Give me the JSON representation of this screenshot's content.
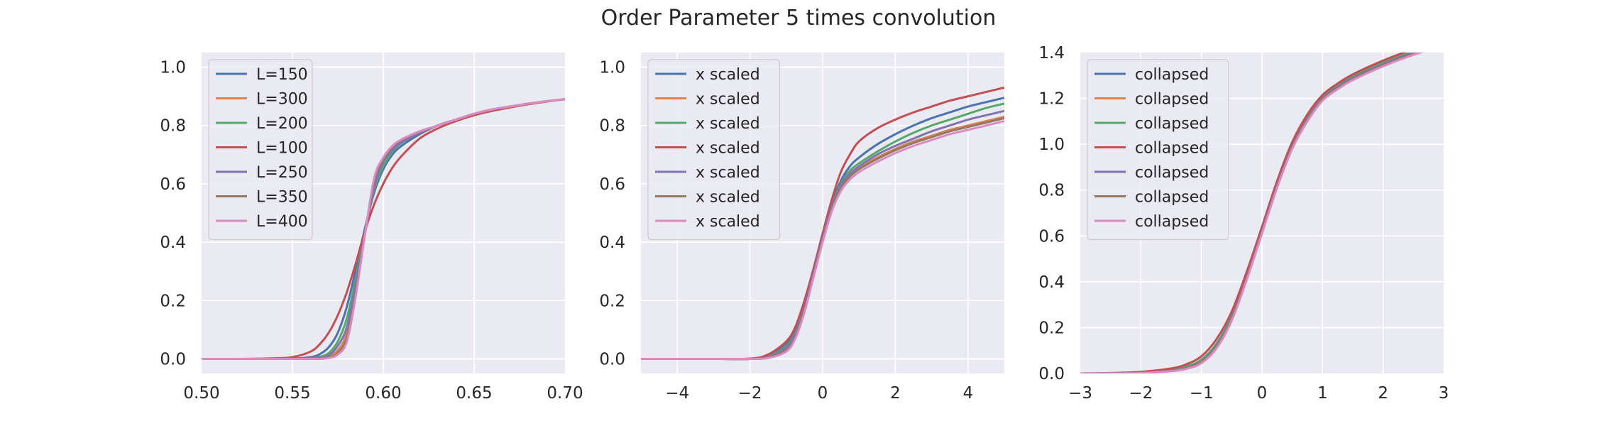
{
  "figure": {
    "title": "Order Parameter 5 times convolution"
  },
  "palette": [
    "#4c72b0",
    "#dd8452",
    "#55a868",
    "#c44e52",
    "#8172b3",
    "#937860",
    "#da8bc3"
  ],
  "chart_data": [
    {
      "type": "line",
      "xlim": [
        0.5,
        0.7
      ],
      "ylim": [
        -0.05,
        1.05
      ],
      "xticks": [
        0.5,
        0.55,
        0.6,
        0.65,
        0.7
      ],
      "xtick_labels": [
        "0.50",
        "0.55",
        "0.60",
        "0.65",
        "0.70"
      ],
      "yticks": [
        0.0,
        0.2,
        0.4,
        0.6,
        0.8,
        1.0
      ],
      "ytick_labels": [
        "0.0",
        "0.2",
        "0.4",
        "0.6",
        "0.8",
        "1.0"
      ],
      "grid": true,
      "legend": "top-left",
      "title": "",
      "xlabel": "",
      "ylabel": "",
      "x": [
        0.5,
        0.52,
        0.54,
        0.55,
        0.56,
        0.565,
        0.57,
        0.575,
        0.58,
        0.585,
        0.59,
        0.595,
        0.6,
        0.605,
        0.61,
        0.62,
        0.63,
        0.64,
        0.65,
        0.66,
        0.67,
        0.68,
        0.69,
        0.7
      ],
      "series": [
        {
          "name": "L=150",
          "values": [
            0.0,
            0.0,
            0.0,
            0.001,
            0.006,
            0.016,
            0.04,
            0.09,
            0.18,
            0.31,
            0.45,
            0.57,
            0.65,
            0.7,
            0.73,
            0.77,
            0.8,
            0.82,
            0.84,
            0.855,
            0.865,
            0.875,
            0.883,
            0.89
          ]
        },
        {
          "name": "L=300",
          "values": [
            0.0,
            0.0,
            0.0,
            0.0,
            0.0,
            0.002,
            0.008,
            0.03,
            0.09,
            0.24,
            0.43,
            0.6,
            0.68,
            0.72,
            0.745,
            0.775,
            0.8,
            0.82,
            0.84,
            0.855,
            0.865,
            0.875,
            0.883,
            0.89
          ]
        },
        {
          "name": "L=200",
          "values": [
            0.0,
            0.0,
            0.0,
            0.0,
            0.002,
            0.007,
            0.02,
            0.06,
            0.14,
            0.28,
            0.44,
            0.58,
            0.66,
            0.71,
            0.74,
            0.775,
            0.8,
            0.82,
            0.84,
            0.855,
            0.865,
            0.875,
            0.883,
            0.89
          ]
        },
        {
          "name": "L=100",
          "values": [
            0.0,
            0.0,
            0.002,
            0.006,
            0.025,
            0.05,
            0.09,
            0.15,
            0.23,
            0.33,
            0.44,
            0.53,
            0.6,
            0.655,
            0.695,
            0.755,
            0.79,
            0.815,
            0.835,
            0.85,
            0.862,
            0.873,
            0.882,
            0.89
          ]
        },
        {
          "name": "L=250",
          "values": [
            0.0,
            0.0,
            0.0,
            0.0,
            0.001,
            0.004,
            0.012,
            0.045,
            0.11,
            0.26,
            0.435,
            0.59,
            0.675,
            0.715,
            0.742,
            0.775,
            0.8,
            0.82,
            0.84,
            0.855,
            0.865,
            0.875,
            0.883,
            0.89
          ]
        },
        {
          "name": "L=350",
          "values": [
            0.0,
            0.0,
            0.0,
            0.0,
            0.0,
            0.001,
            0.005,
            0.02,
            0.075,
            0.23,
            0.43,
            0.61,
            0.685,
            0.725,
            0.75,
            0.778,
            0.8,
            0.82,
            0.84,
            0.855,
            0.865,
            0.875,
            0.883,
            0.89
          ]
        },
        {
          "name": "L=400",
          "values": [
            0.0,
            0.0,
            0.0,
            0.0,
            0.0,
            0.0,
            0.003,
            0.015,
            0.06,
            0.22,
            0.43,
            0.62,
            0.69,
            0.73,
            0.752,
            0.78,
            0.8,
            0.82,
            0.84,
            0.855,
            0.865,
            0.875,
            0.883,
            0.89
          ]
        }
      ]
    },
    {
      "type": "line",
      "xlim": [
        -5,
        5
      ],
      "ylim": [
        -0.05,
        1.05
      ],
      "xticks": [
        -4,
        -2,
        0,
        2,
        4
      ],
      "xtick_labels": [
        "−4",
        "−2",
        "0",
        "2",
        "4"
      ],
      "yticks": [
        0.0,
        0.2,
        0.4,
        0.6,
        0.8,
        1.0
      ],
      "ytick_labels": [
        "0.0",
        "0.2",
        "0.4",
        "0.6",
        "0.8",
        "1.0"
      ],
      "grid": true,
      "legend": "top-left",
      "title": "",
      "xlabel": "",
      "ylabel": "",
      "x": [
        -5,
        -4,
        -3,
        -2,
        -1.5,
        -1.0,
        -0.75,
        -0.5,
        -0.25,
        0,
        0.25,
        0.5,
        0.75,
        1.0,
        1.5,
        2,
        2.5,
        3,
        3.5,
        4,
        4.5,
        5
      ],
      "series": [
        {
          "name": "x scaled",
          "values": [
            0.0,
            0.0,
            0.0,
            0.0,
            0.01,
            0.05,
            0.1,
            0.19,
            0.3,
            0.42,
            0.53,
            0.61,
            0.66,
            0.69,
            0.735,
            0.77,
            0.8,
            0.825,
            0.845,
            0.865,
            0.88,
            0.895
          ]
        },
        {
          "name": "x scaled",
          "values": [
            0.0,
            0.0,
            0.0,
            0.0,
            0.005,
            0.035,
            0.08,
            0.17,
            0.29,
            0.41,
            0.52,
            0.59,
            0.63,
            0.655,
            0.69,
            0.72,
            0.745,
            0.765,
            0.785,
            0.8,
            0.815,
            0.83
          ]
        },
        {
          "name": "x scaled",
          "values": [
            0.0,
            0.0,
            0.0,
            0.0,
            0.008,
            0.045,
            0.09,
            0.18,
            0.3,
            0.42,
            0.525,
            0.6,
            0.645,
            0.67,
            0.71,
            0.745,
            0.775,
            0.8,
            0.82,
            0.84,
            0.86,
            0.875
          ]
        },
        {
          "name": "x scaled",
          "values": [
            0.0,
            0.0,
            0.0,
            0.001,
            0.015,
            0.06,
            0.11,
            0.2,
            0.31,
            0.43,
            0.545,
            0.64,
            0.7,
            0.745,
            0.79,
            0.82,
            0.845,
            0.865,
            0.885,
            0.9,
            0.915,
            0.93
          ]
        },
        {
          "name": "x scaled",
          "values": [
            0.0,
            0.0,
            0.0,
            0.0,
            0.006,
            0.04,
            0.085,
            0.175,
            0.295,
            0.415,
            0.52,
            0.595,
            0.635,
            0.66,
            0.7,
            0.73,
            0.755,
            0.78,
            0.8,
            0.82,
            0.835,
            0.85
          ]
        },
        {
          "name": "x scaled",
          "values": [
            0.0,
            0.0,
            0.0,
            0.0,
            0.004,
            0.03,
            0.075,
            0.165,
            0.285,
            0.405,
            0.51,
            0.585,
            0.625,
            0.65,
            0.685,
            0.715,
            0.74,
            0.76,
            0.78,
            0.795,
            0.81,
            0.825
          ]
        },
        {
          "name": "x scaled",
          "values": [
            0.0,
            0.0,
            0.0,
            0.0,
            0.003,
            0.025,
            0.07,
            0.16,
            0.28,
            0.4,
            0.505,
            0.575,
            0.615,
            0.64,
            0.675,
            0.705,
            0.73,
            0.75,
            0.77,
            0.785,
            0.8,
            0.815
          ]
        }
      ]
    },
    {
      "type": "line",
      "xlim": [
        -3,
        3
      ],
      "ylim": [
        0.0,
        1.4
      ],
      "xticks": [
        -3,
        -2,
        -1,
        0,
        1,
        2,
        3
      ],
      "xtick_labels": [
        "−3",
        "−2",
        "−1",
        "0",
        "1",
        "2",
        "3"
      ],
      "yticks": [
        0.0,
        0.2,
        0.4,
        0.6,
        0.8,
        1.0,
        1.2,
        1.4
      ],
      "ytick_labels": [
        "0.0",
        "0.2",
        "0.4",
        "0.6",
        "0.8",
        "1.0",
        "1.2",
        "1.4"
      ],
      "grid": true,
      "legend": "top-left",
      "title": "",
      "xlabel": "",
      "ylabel": "",
      "x": [
        -3,
        -2.5,
        -2,
        -1.5,
        -1.25,
        -1.0,
        -0.75,
        -0.5,
        -0.25,
        0,
        0.25,
        0.5,
        0.75,
        1.0,
        1.25,
        1.5,
        2.0,
        2.5,
        3.0
      ],
      "series": [
        {
          "name": "collapsed",
          "values": [
            0.0,
            0.001,
            0.004,
            0.015,
            0.03,
            0.06,
            0.13,
            0.25,
            0.43,
            0.63,
            0.83,
            1.0,
            1.12,
            1.21,
            1.26,
            1.3,
            1.36,
            1.41,
            1.45
          ]
        },
        {
          "name": "collapsed",
          "values": [
            0.0,
            0.001,
            0.004,
            0.014,
            0.028,
            0.057,
            0.125,
            0.245,
            0.425,
            0.625,
            0.825,
            0.995,
            1.115,
            1.205,
            1.255,
            1.295,
            1.355,
            1.405,
            1.445
          ]
        },
        {
          "name": "collapsed",
          "values": [
            0.0,
            0.001,
            0.004,
            0.015,
            0.03,
            0.06,
            0.13,
            0.25,
            0.43,
            0.63,
            0.83,
            1.0,
            1.12,
            1.21,
            1.26,
            1.3,
            1.36,
            1.41,
            1.45
          ]
        },
        {
          "name": "collapsed",
          "values": [
            0.0,
            0.002,
            0.007,
            0.022,
            0.04,
            0.075,
            0.15,
            0.27,
            0.445,
            0.64,
            0.84,
            1.01,
            1.13,
            1.215,
            1.265,
            1.305,
            1.365,
            1.415,
            1.455
          ]
        },
        {
          "name": "collapsed",
          "values": [
            0.0,
            0.001,
            0.003,
            0.012,
            0.025,
            0.052,
            0.12,
            0.24,
            0.42,
            0.62,
            0.82,
            0.99,
            1.11,
            1.2,
            1.25,
            1.29,
            1.35,
            1.4,
            1.44
          ]
        },
        {
          "name": "collapsed",
          "values": [
            0.0,
            0.0,
            0.003,
            0.011,
            0.023,
            0.05,
            0.115,
            0.235,
            0.415,
            0.615,
            0.815,
            0.985,
            1.105,
            1.195,
            1.245,
            1.285,
            1.345,
            1.395,
            1.435
          ]
        },
        {
          "name": "collapsed",
          "values": [
            0.0,
            0.0,
            0.002,
            0.01,
            0.02,
            0.045,
            0.11,
            0.23,
            0.41,
            0.61,
            0.81,
            0.98,
            1.1,
            1.19,
            1.24,
            1.28,
            1.34,
            1.39,
            1.43
          ]
        }
      ]
    }
  ]
}
